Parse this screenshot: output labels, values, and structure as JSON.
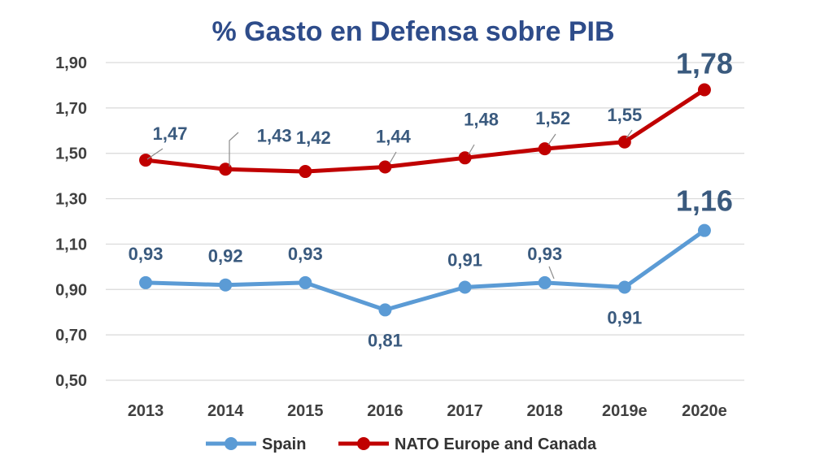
{
  "chart_data": {
    "type": "line",
    "title": "% Gasto en Defensa sobre PIB",
    "categories": [
      "2013",
      "2014",
      "2015",
      "2016",
      "2017",
      "2018",
      "2019e",
      "2020e"
    ],
    "ylim": [
      0.5,
      1.9
    ],
    "yticks": [
      "0,50",
      "0,70",
      "0,90",
      "1,10",
      "1,30",
      "1,50",
      "1,70",
      "1,90"
    ],
    "ytick_values": [
      0.5,
      0.7,
      0.9,
      1.1,
      1.3,
      1.5,
      1.7,
      1.9
    ],
    "grid": true,
    "legend_position": "bottom",
    "series": [
      {
        "name": "Spain",
        "color": "#5B9BD5",
        "values": [
          0.93,
          0.92,
          0.93,
          0.81,
          0.91,
          0.93,
          0.91,
          1.16
        ],
        "labels": [
          "0,93",
          "0,92",
          "0,93",
          "0,81",
          "0,91",
          "0,93",
          "0,91",
          "1,16"
        ]
      },
      {
        "name": "NATO Europe and Canada",
        "color": "#C00000",
        "values": [
          1.47,
          1.43,
          1.42,
          1.44,
          1.48,
          1.52,
          1.55,
          1.78
        ],
        "labels": [
          "1,47",
          "1,43",
          "1,42",
          "1,44",
          "1,48",
          "1,52",
          "1,55",
          "1,78"
        ]
      }
    ]
  }
}
